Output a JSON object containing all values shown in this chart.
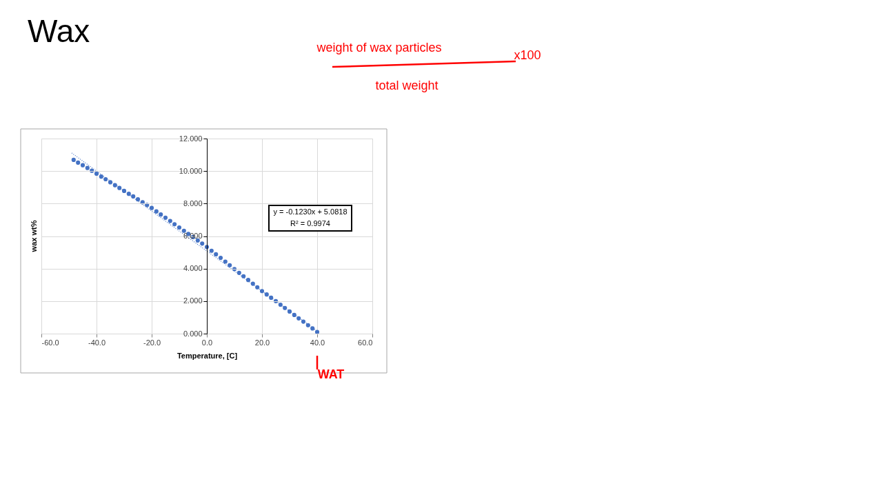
{
  "chart_data": {
    "type": "scatter",
    "title": "Wax",
    "xlabel": "Temperature, [C]",
    "ylabel": "wax wt%",
    "xlim": [
      -60,
      60
    ],
    "xticks": [
      {
        "value": -60,
        "label": "-60.0"
      },
      {
        "value": -40,
        "label": "-40.0"
      },
      {
        "value": -20,
        "label": "-20.0"
      },
      {
        "value": 0,
        "label": "0.0"
      },
      {
        "value": 20,
        "label": "20.0"
      },
      {
        "value": 40,
        "label": "40.0"
      },
      {
        "value": 60,
        "label": "60.0"
      }
    ],
    "ylim": [
      0,
      12
    ],
    "yticks": [
      {
        "value": 0,
        "label": "0.000"
      },
      {
        "value": 2,
        "label": "2.000"
      },
      {
        "value": 4,
        "label": "4.000"
      },
      {
        "value": 6,
        "label": "6.000"
      },
      {
        "value": 8,
        "label": "8.000"
      },
      {
        "value": 10,
        "label": "10.000"
      },
      {
        "value": 12,
        "label": "12.000"
      }
    ],
    "grid": true,
    "legend": false,
    "series": [
      {
        "color": "#4472c4",
        "marker": "circle",
        "x": [
          40,
          38.3,
          36.7,
          35.0,
          33.3,
          31.7,
          30.0,
          28.3,
          26.7,
          25.0,
          23.3,
          21.7,
          20.0,
          18.3,
          16.7,
          15.0,
          13.3,
          11.7,
          10.0,
          8.3,
          6.7,
          5.0,
          3.3,
          1.7,
          0.0,
          -1.7,
          -3.3,
          -5.0,
          -6.7,
          -8.3,
          -10.0,
          -11.7,
          -13.3,
          -15.0,
          -16.7,
          -18.3,
          -20.0,
          -21.7,
          -23.3,
          -25.0,
          -26.7,
          -28.3,
          -30.0,
          -31.7,
          -33.3,
          -35.0,
          -36.7,
          -38.3,
          -40.0,
          -41.7,
          -43.3,
          -45.0,
          -46.7,
          -48.3
        ],
        "values": [
          0.1,
          0.32,
          0.52,
          0.74,
          0.94,
          1.15,
          1.36,
          1.58,
          1.78,
          2.0,
          2.21,
          2.41,
          2.62,
          2.85,
          3.07,
          3.3,
          3.53,
          3.74,
          3.97,
          4.21,
          4.43,
          4.66,
          4.88,
          5.1,
          5.33,
          5.54,
          5.73,
          5.94,
          6.13,
          6.33,
          6.53,
          6.73,
          6.93,
          7.13,
          7.33,
          7.52,
          7.73,
          7.91,
          8.08,
          8.26,
          8.44,
          8.6,
          8.78,
          8.96,
          9.13,
          9.31,
          9.5,
          9.66,
          9.84,
          10.02,
          10.19,
          10.36,
          10.52,
          10.69
        ]
      },
      {
        "type": "line",
        "color": "#4472c4",
        "line_style": "dotted",
        "x": [
          -49,
          40
        ],
        "values": [
          11.11,
          0.16
        ]
      }
    ],
    "annotations": [
      "y = -0.1230x + 5.0818",
      "R² = 0.9974",
      "weight of wax particles",
      "total weight",
      "x100",
      {
        "text": "WAT",
        "x": 40,
        "y": 0
      }
    ]
  }
}
